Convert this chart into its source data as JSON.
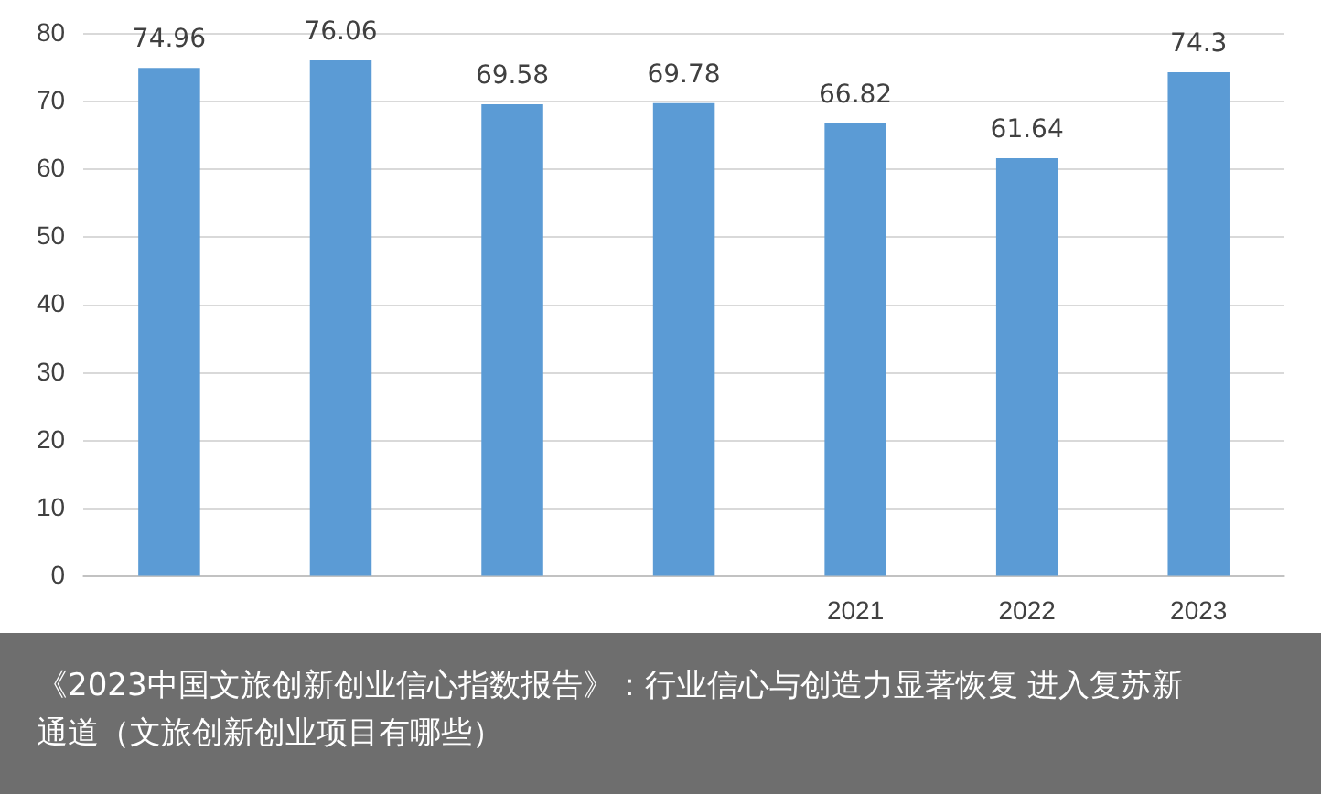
{
  "chart_data": {
    "type": "bar",
    "categories": [
      null,
      null,
      null,
      null,
      "2021",
      "2022",
      "2023"
    ],
    "values": [
      74.96,
      76.06,
      69.58,
      69.78,
      66.82,
      61.64,
      74.3
    ],
    "color": "#5b9bd5",
    "ylim": [
      0,
      80
    ],
    "yticks": [
      0,
      10,
      20,
      30,
      40,
      50,
      60,
      70,
      80
    ],
    "grid": "y",
    "data_labels": true,
    "annotations": [
      "《2023中国文旅创新创业信心指数报告》：行业信心与创造力显著恢复 进入复苏新通道（文旅创新创业项目有哪些）"
    ]
  }
}
